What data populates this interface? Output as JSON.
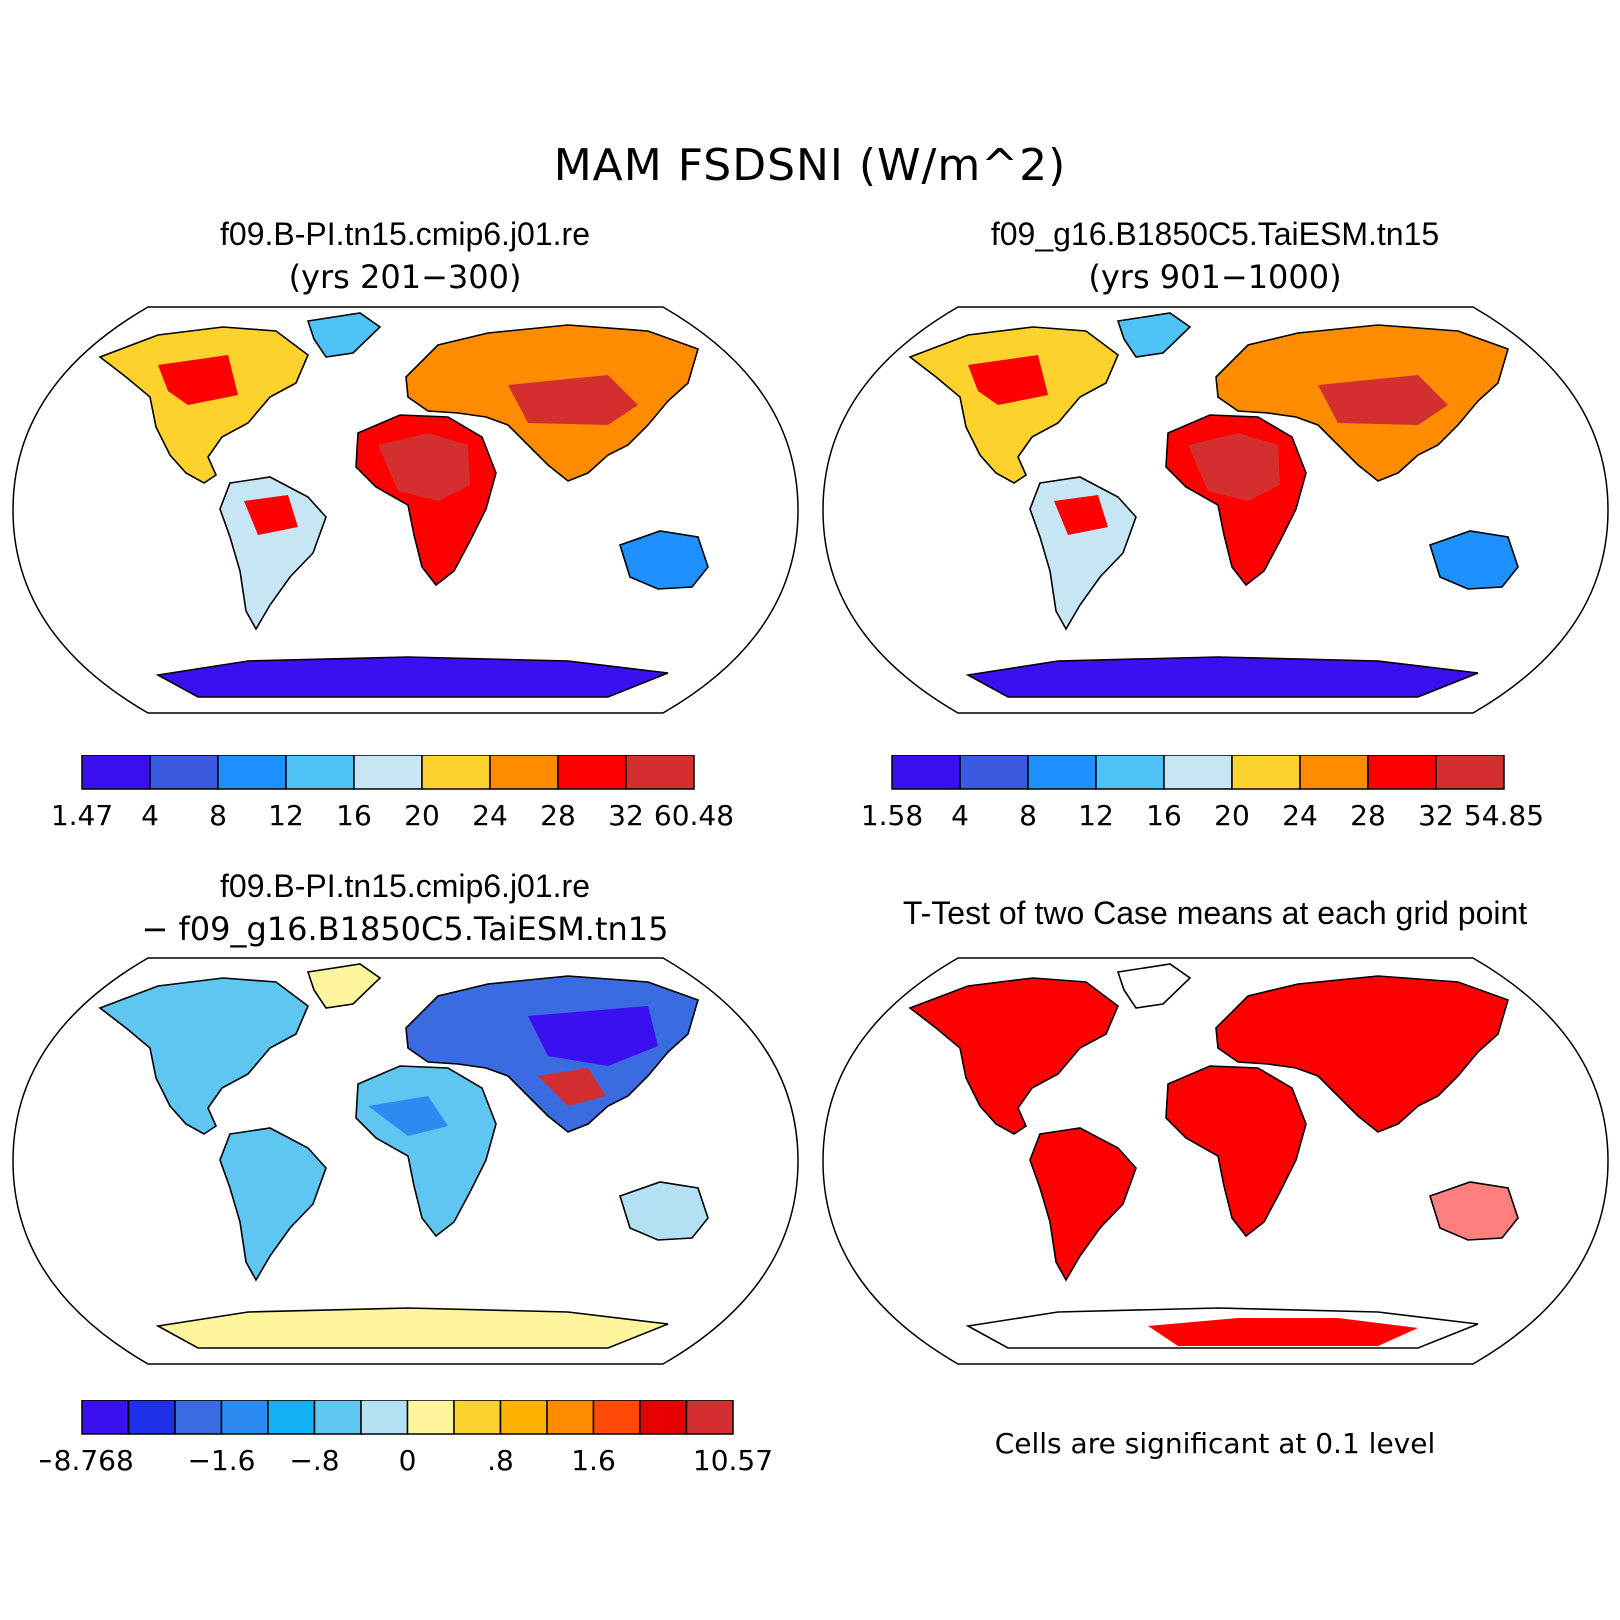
{
  "figure": {
    "title": "MAM FSDSNI (W/m^2)"
  },
  "colors": {
    "seq": [
      "#3a10f0",
      "#3a5ae0",
      "#1e90ff",
      "#4fc3f7",
      "#c6e6f5",
      "#fdd22c",
      "#ff8c00",
      "#ff0000",
      "#d32f2f"
    ],
    "diff": [
      "#3a10f0",
      "#2030e8",
      "#3a6be0",
      "#2a8cf0",
      "#12b0f5",
      "#5ec6f0",
      "#b3e0f2",
      "#fff59d",
      "#fdd22c",
      "#ffb300",
      "#ff8c00",
      "#ff4a0a",
      "#e60000",
      "#d32f2f"
    ],
    "signif": "#ff0000"
  },
  "chart_data": [
    {
      "type": "heatmap",
      "map_projection": "Robinson",
      "title": "f09.B-PI.tn15.cmip6.j01.re",
      "subtitle": "(yrs 201−300)",
      "colorbar": {
        "tick_labels": [
          "1.47",
          "4",
          "8",
          "12",
          "16",
          "20",
          "24",
          "28",
          "32",
          "60.48"
        ],
        "levels": [
          1.47,
          4,
          8,
          12,
          16,
          20,
          24,
          28,
          32,
          60.48
        ]
      }
    },
    {
      "type": "heatmap",
      "map_projection": "Robinson",
      "title": "f09_g16.B1850C5.TaiESM.tn15",
      "subtitle": "(yrs 901−1000)",
      "colorbar": {
        "tick_labels": [
          "1.58",
          "4",
          "8",
          "12",
          "16",
          "20",
          "24",
          "28",
          "32",
          "54.85"
        ],
        "levels": [
          1.58,
          4,
          8,
          12,
          16,
          20,
          24,
          28,
          32,
          54.85
        ]
      }
    },
    {
      "type": "heatmap",
      "map_projection": "Robinson",
      "title": "f09.B-PI.tn15.cmip6.j01.re",
      "subtitle": "− f09_g16.B1850C5.TaiESM.tn15",
      "colorbar": {
        "tick_labels": [
          "−8.768",
          "−1.6",
          "−.8",
          "0",
          ".8",
          "1.6",
          "10.57"
        ],
        "label_box_positions": [
          0,
          3,
          5,
          7,
          9,
          11,
          14
        ],
        "n_boxes": 14
      }
    },
    {
      "type": "heatmap",
      "map_projection": "Robinson",
      "title": "T-Test of two Case means at each grid point",
      "note": "Cells are significant at 0.1 level"
    }
  ]
}
